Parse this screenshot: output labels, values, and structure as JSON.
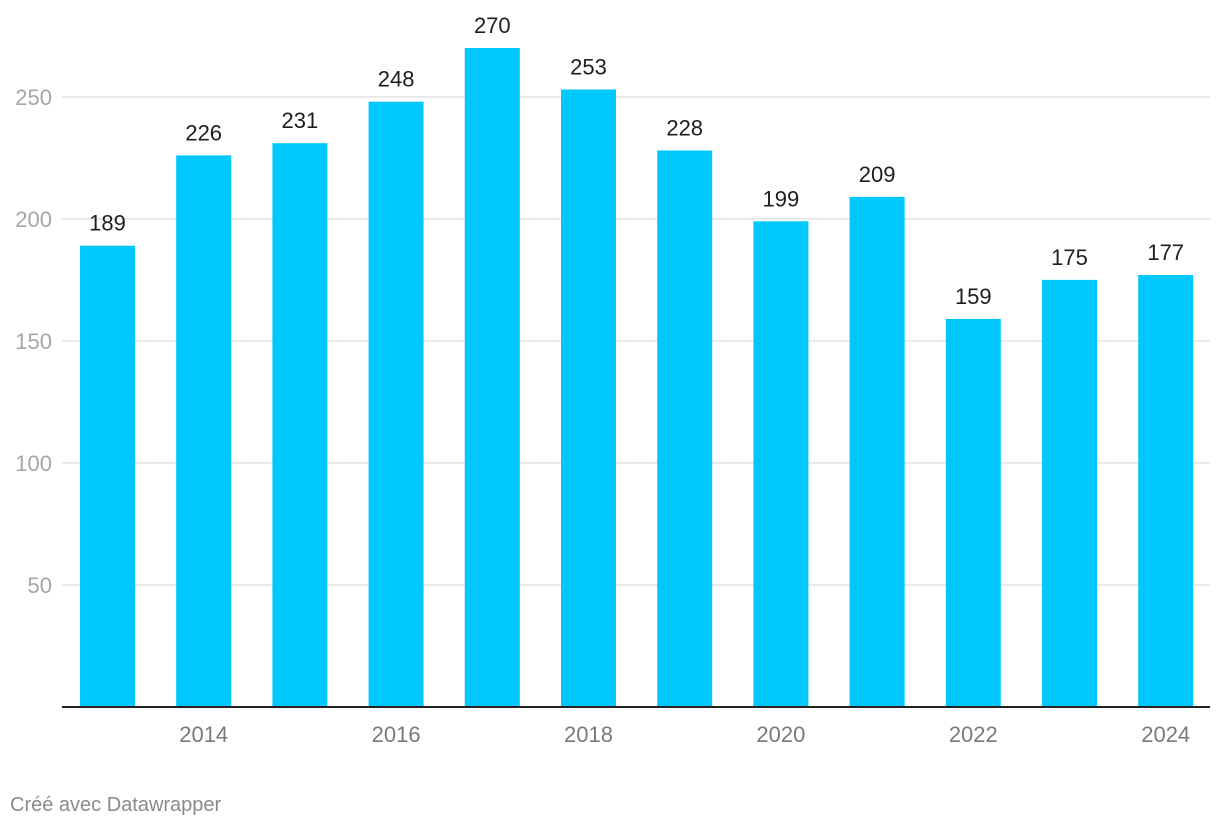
{
  "chart_data": {
    "type": "bar",
    "categories": [
      "2013",
      "2014",
      "2015",
      "2016",
      "2017",
      "2018",
      "2019",
      "2020",
      "2021",
      "2022",
      "2023",
      "2024"
    ],
    "values": [
      189,
      226,
      231,
      248,
      270,
      253,
      228,
      199,
      209,
      159,
      175,
      177
    ],
    "x_tick_labels": [
      "2014",
      "2016",
      "2018",
      "2020",
      "2022",
      "2024"
    ],
    "y_ticks": [
      50,
      100,
      150,
      200,
      250
    ],
    "ylim": [
      0,
      270
    ],
    "title": "",
    "xlabel": "",
    "ylabel": "",
    "grid": true,
    "legend": "none",
    "bar_color": "#00c8ff"
  },
  "footer": {
    "credit": "Créé avec Datawrapper"
  }
}
